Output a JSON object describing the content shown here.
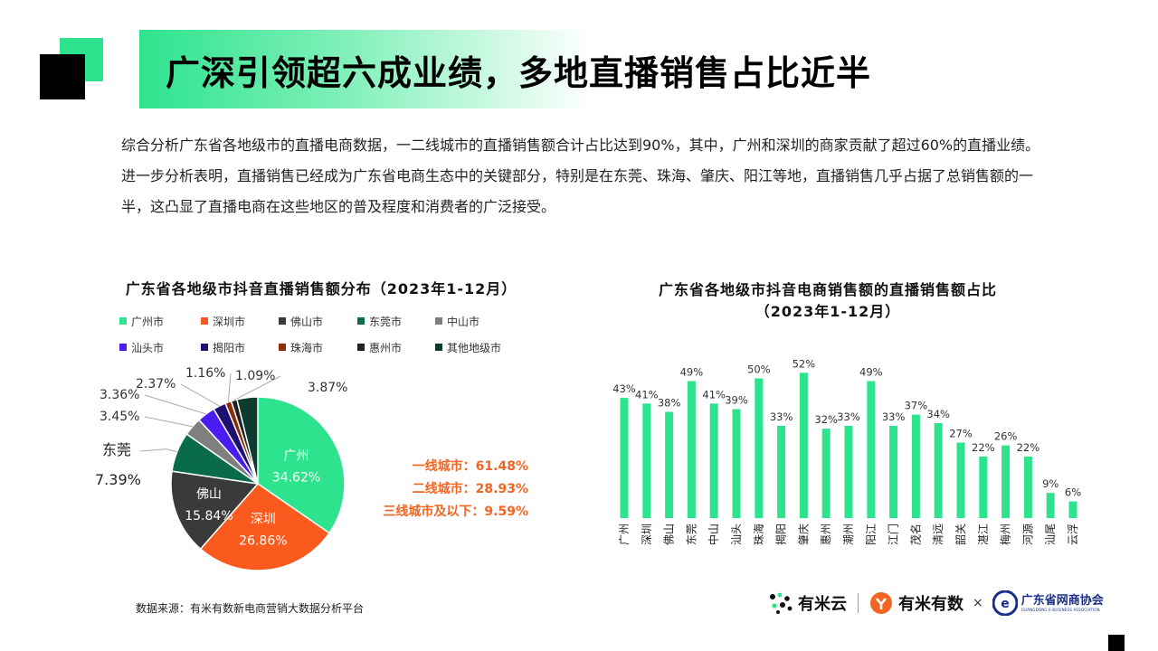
{
  "header": {
    "title": "广深引领超六成业绩，多地直播销售占比近半"
  },
  "intro": {
    "paragraph_1": "综合分析广东省各地级市的直播电商数据，一二线城市的直播销售额合计占比达到90%，其中，广州和深圳的商家贡献了超过60%的直播业绩。",
    "paragraph_2": "进一步分析表明，直播销售已经成为广东省电商生态中的关键部分，特别是在东莞、珠海、肇庆、阳江等地，直播销售几乎占据了总销售额的一半，这凸显了直播电商在这些地区的普及程度和消费者的广泛接受。"
  },
  "tiers": {
    "tier1": "一线城市：61.48%",
    "tier2": "二线城市：28.93%",
    "tier3": "三线城市及以下：9.59%"
  },
  "source": "数据来源：有米有数新电商营销大数据分析平台",
  "logos": {
    "youmi_cloud": "有米云",
    "youmi_data": "有米有数",
    "separator": "×",
    "association": "广东省网商协会",
    "association_en": "GUANGDONG E-BUSINESS ASSOCIATION"
  },
  "colors": {
    "accent_green": "#2ee38e",
    "tier_orange": "#f26522"
  },
  "chart_data": [
    {
      "type": "pie",
      "title": "广东省各地级市抖音直播销售额分布（2023年1-12月）",
      "slices": [
        {
          "name": "广州市",
          "short": "广州",
          "value": 34.62,
          "label": "34.62%",
          "color": "#2ee38e"
        },
        {
          "name": "深圳市",
          "short": "深圳",
          "value": 26.86,
          "label": "26.86%",
          "color": "#fa5a1e"
        },
        {
          "name": "佛山市",
          "short": "佛山",
          "value": 15.84,
          "label": "15.84%",
          "color": "#3a3a3a"
        },
        {
          "name": "东莞市",
          "short": "东莞",
          "value": 7.39,
          "label": "7.39%",
          "color": "#0a6b4c"
        },
        {
          "name": "中山市",
          "short": "",
          "value": 3.45,
          "label": "3.45%",
          "color": "#7f7f7f"
        },
        {
          "name": "汕头市",
          "short": "",
          "value": 3.36,
          "label": "3.36%",
          "color": "#4a1cf0"
        },
        {
          "name": "揭阳市",
          "short": "",
          "value": 2.37,
          "label": "2.37%",
          "color": "#1e1070"
        },
        {
          "name": "珠海市",
          "short": "",
          "value": 1.16,
          "label": "1.16%",
          "color": "#8a2e0a"
        },
        {
          "name": "惠州市",
          "short": "",
          "value": 1.09,
          "label": "1.09%",
          "color": "#202020"
        },
        {
          "name": "其他地级市",
          "short": "",
          "value": 3.87,
          "label": "3.87%",
          "color": "#0d3b2e"
        }
      ],
      "legend_position": "top"
    },
    {
      "type": "bar",
      "title": "广东省各地级市抖音电商销售额的直播销售额占比",
      "subtitle": "（2023年1-12月）",
      "categories": [
        "广州",
        "深圳",
        "佛山",
        "东莞",
        "中山",
        "汕头",
        "珠海",
        "揭阳",
        "肇庆",
        "惠州",
        "潮州",
        "阳江",
        "江门",
        "茂名",
        "清远",
        "韶关",
        "湛江",
        "梅州",
        "河源",
        "汕尾",
        "云浮"
      ],
      "values": [
        43,
        41,
        38,
        49,
        41,
        39,
        50,
        33,
        52,
        32,
        33,
        49,
        33,
        37,
        34,
        27,
        22,
        26,
        22,
        9,
        6
      ],
      "value_labels": [
        "43%",
        "41%",
        "38%",
        "49%",
        "41%",
        "39%",
        "50%",
        "33%",
        "52%",
        "32%",
        "33%",
        "49%",
        "33%",
        "37%",
        "34%",
        "27%",
        "22%",
        "26%",
        "22%",
        "9%",
        "6%"
      ],
      "ylim": [
        0,
        55
      ],
      "bar_color": "#2ee38e",
      "grid": false
    }
  ]
}
